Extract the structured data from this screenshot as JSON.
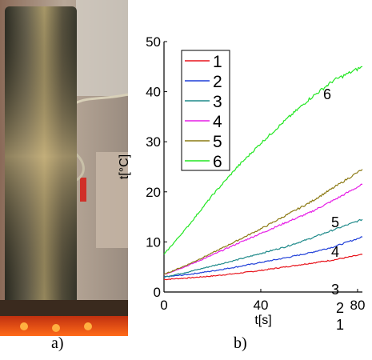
{
  "captions": {
    "a": "a)",
    "b": "b)"
  },
  "photo": {
    "description_icon": "heated-cylinder-photo-icon",
    "colors": {
      "cylinder_dark": "#4a4a3a",
      "cylinder_light": "#c8b888",
      "fire": "#ff4a10"
    }
  },
  "chart_data": {
    "type": "line",
    "xlabel": "t[s]",
    "ylabel": "t[°C]",
    "xlim": [
      0,
      82
    ],
    "ylim": [
      0,
      50
    ],
    "xticks": [
      "0",
      "40",
      "80"
    ],
    "yticks": [
      "0",
      "10",
      "20",
      "30",
      "40",
      "50"
    ],
    "legend": {
      "placement": "top-left"
    },
    "series": [
      {
        "name": "1",
        "color": "#e8141c",
        "x": [
          0,
          10,
          20,
          30,
          40,
          50,
          60,
          70,
          82
        ],
        "values": [
          2.5,
          2.8,
          3.2,
          3.7,
          4.3,
          5.0,
          5.7,
          6.4,
          7.5
        ]
      },
      {
        "name": "2",
        "color": "#1f3fd8",
        "x": [
          0,
          10,
          20,
          30,
          40,
          50,
          60,
          70,
          82
        ],
        "values": [
          3.0,
          3.5,
          4.2,
          5.0,
          5.9,
          6.8,
          7.8,
          9.0,
          11.0
        ]
      },
      {
        "name": "3",
        "color": "#1f8a8a",
        "x": [
          0,
          10,
          20,
          30,
          40,
          50,
          60,
          70,
          82
        ],
        "values": [
          3.0,
          4.0,
          5.2,
          6.4,
          7.7,
          9.0,
          10.6,
          12.4,
          14.5
        ]
      },
      {
        "name": "4",
        "color": "#e61ee6",
        "x": [
          0,
          10,
          20,
          30,
          40,
          50,
          60,
          70,
          82
        ],
        "values": [
          3.5,
          5.3,
          7.4,
          9.6,
          11.7,
          13.8,
          15.8,
          18.3,
          21.5
        ]
      },
      {
        "name": "5",
        "color": "#8c7a14",
        "x": [
          0,
          10,
          20,
          30,
          40,
          50,
          60,
          70,
          82
        ],
        "values": [
          3.5,
          5.5,
          7.8,
          10.2,
          12.6,
          15.2,
          17.8,
          20.8,
          24.5
        ]
      },
      {
        "name": "6",
        "color": "#22e622",
        "x": [
          0,
          10,
          20,
          30,
          40,
          50,
          60,
          70,
          82
        ],
        "values": [
          7.5,
          13.2,
          19.3,
          24.8,
          29.7,
          34.2,
          38.5,
          42.2,
          45.0
        ]
      }
    ],
    "curve_labels": [
      "1",
      "2",
      "3",
      "4",
      "5",
      "6"
    ]
  }
}
